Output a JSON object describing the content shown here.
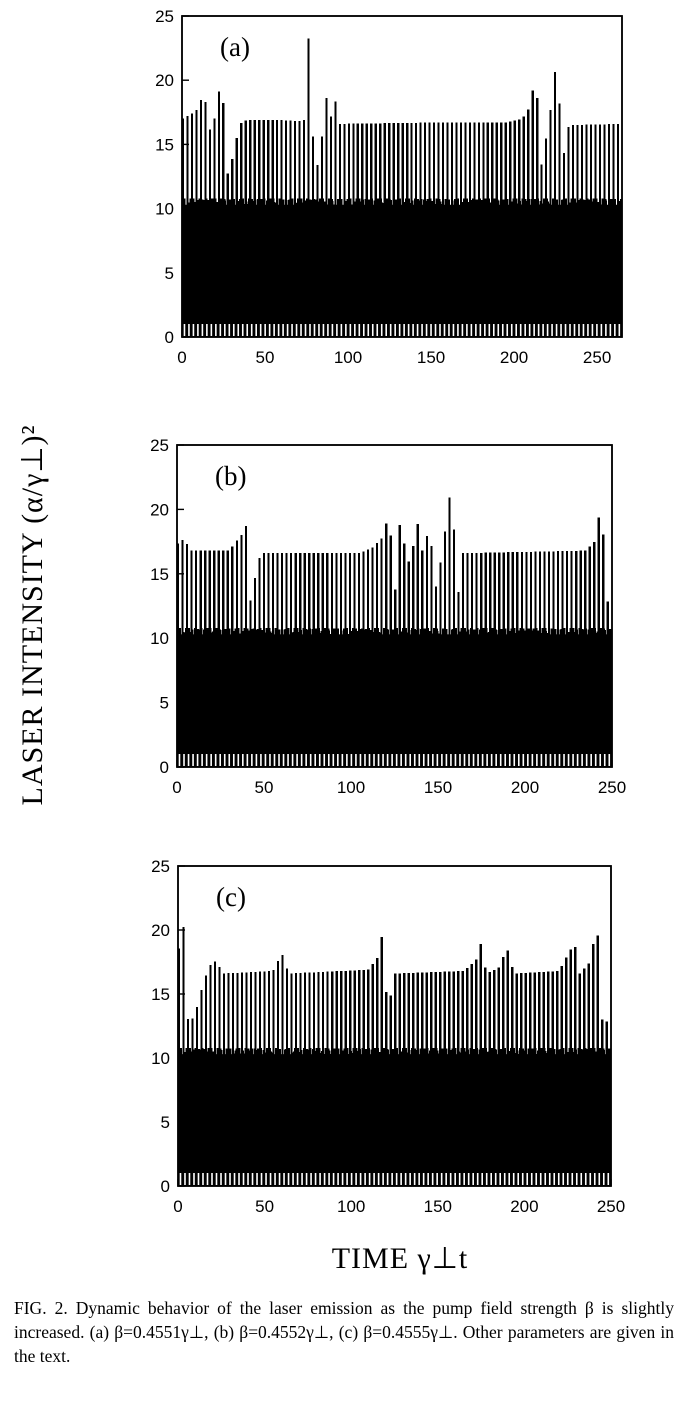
{
  "figure": {
    "ylabel": "LASER INTENSITY (α/γ⊥)²",
    "xlabel": "TIME  γ⊥t",
    "caption": "FIG. 2. Dynamic behavior of the laser emission as the pump field strength β is slightly increased. (a) β=0.4551γ⊥, (b) β=0.4552γ⊥, (c) β=0.4555γ⊥. Other parameters are given in the text."
  },
  "chart_data": [
    {
      "type": "line",
      "panel_label": "(a)",
      "xlim": [
        0,
        265
      ],
      "ylim": [
        0,
        25
      ],
      "x_ticks": [
        0,
        50,
        100,
        150,
        200,
        250
      ],
      "y_ticks": [
        0,
        5,
        10,
        15,
        20,
        25
      ],
      "series": [
        {
          "pulse_period": 2.7,
          "baseline_peak": 10.8,
          "envelope": [
            [
              0,
              17.0
            ],
            [
              5,
              17.3
            ],
            [
              10,
              17.8
            ],
            [
              13,
              19.2
            ],
            [
              17,
              16.0
            ],
            [
              20,
              17.2
            ],
            [
              24,
              20.7
            ],
            [
              27,
              12.5
            ],
            [
              30,
              13.7
            ],
            [
              33,
              15.5
            ],
            [
              36,
              16.8
            ],
            [
              40,
              16.9
            ],
            [
              60,
              16.9
            ],
            [
              70,
              16.8
            ],
            [
              74,
              16.9
            ],
            [
              76,
              23.8
            ],
            [
              80,
              12.5
            ],
            [
              83,
              14.2
            ],
            [
              87,
              18.6
            ],
            [
              90,
              17.0
            ],
            [
              92,
              18.6
            ],
            [
              95,
              16.6
            ],
            [
              150,
              16.7
            ],
            [
              195,
              16.7
            ],
            [
              205,
              17.0
            ],
            [
              210,
              18.0
            ],
            [
              213,
              21.0
            ],
            [
              216,
              13.0
            ],
            [
              220,
              16.0
            ],
            [
              223,
              18.5
            ],
            [
              226,
              22.3
            ],
            [
              229,
              13.5
            ],
            [
              233,
              16.5
            ],
            [
              264,
              16.6
            ]
          ]
        }
      ]
    },
    {
      "type": "line",
      "panel_label": "(b)",
      "xlim": [
        0,
        250
      ],
      "ylim": [
        0,
        25
      ],
      "x_ticks": [
        0,
        50,
        100,
        150,
        200,
        250
      ],
      "y_ticks": [
        0,
        5,
        10,
        15,
        20,
        25
      ],
      "series": [
        {
          "pulse_period": 2.6,
          "baseline_peak": 10.8,
          "envelope": [
            [
              0,
              17.3
            ],
            [
              4,
              17.7
            ],
            [
              8,
              16.8
            ],
            [
              30,
              16.8
            ],
            [
              34,
              17.5
            ],
            [
              37,
              18.0
            ],
            [
              39,
              20.2
            ],
            [
              42,
              12.8
            ],
            [
              45,
              14.8
            ],
            [
              48,
              16.6
            ],
            [
              105,
              16.6
            ],
            [
              112,
              17.0
            ],
            [
              118,
              17.8
            ],
            [
              122,
              19.8
            ],
            [
              125,
              13.0
            ],
            [
              128,
              18.8
            ],
            [
              134,
              15.5
            ],
            [
              138,
              19.2
            ],
            [
              142,
              16.0
            ],
            [
              145,
              19.6
            ],
            [
              148,
              13.5
            ],
            [
              151,
              15.5
            ],
            [
              155,
              19.2
            ],
            [
              158,
              22.4
            ],
            [
              161,
              12.5
            ],
            [
              164,
              16.6
            ],
            [
              235,
              16.8
            ],
            [
              240,
              17.5
            ],
            [
              244,
              20.6
            ],
            [
              247,
              13.0
            ],
            [
              249,
              12.5
            ]
          ]
        }
      ]
    },
    {
      "type": "line",
      "panel_label": "(c)",
      "xlim": [
        0,
        250
      ],
      "ylim": [
        0,
        25
      ],
      "x_ticks": [
        0,
        50,
        100,
        150,
        200,
        250
      ],
      "y_ticks": [
        0,
        5,
        10,
        15,
        20,
        25
      ],
      "series": [
        {
          "pulse_period": 2.6,
          "baseline_peak": 10.8,
          "envelope": [
            [
              0,
              18.0
            ],
            [
              3,
              20.8
            ],
            [
              6,
              12.5
            ],
            [
              10,
              13.5
            ],
            [
              14,
              15.5
            ],
            [
              18,
              17.2
            ],
            [
              22,
              17.6
            ],
            [
              26,
              16.6
            ],
            [
              55,
              16.8
            ],
            [
              60,
              18.2
            ],
            [
              64,
              16.6
            ],
            [
              110,
              16.9
            ],
            [
              115,
              17.8
            ],
            [
              118,
              19.7
            ],
            [
              121,
              13.5
            ],
            [
              125,
              16.6
            ],
            [
              165,
              16.8
            ],
            [
              172,
              17.6
            ],
            [
              175,
              19.0
            ],
            [
              178,
              16.6
            ],
            [
              185,
              17.0
            ],
            [
              190,
              18.6
            ],
            [
              194,
              16.6
            ],
            [
              220,
              16.8
            ],
            [
              226,
              18.3
            ],
            [
              229,
              19.0
            ],
            [
              232,
              16.6
            ],
            [
              238,
              17.5
            ],
            [
              242,
              20.6
            ],
            [
              245,
              13.0
            ],
            [
              249,
              12.8
            ]
          ]
        }
      ]
    }
  ]
}
